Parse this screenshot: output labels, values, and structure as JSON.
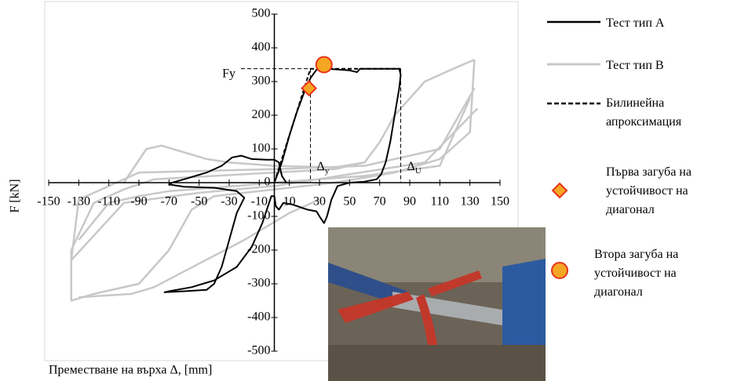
{
  "chart_data": {
    "type": "line",
    "xlabel": "Преместване на върха Δ, [mm]",
    "ylabel": "F [kN]",
    "xlim": [
      -150,
      150
    ],
    "ylim": [
      -500,
      500
    ],
    "xticks": [
      -150,
      -130,
      -110,
      -90,
      -70,
      -50,
      -30,
      -10,
      10,
      30,
      50,
      70,
      90,
      110,
      130,
      150
    ],
    "yticks": [
      -500,
      -400,
      -300,
      -200,
      -100,
      0,
      100,
      200,
      300,
      400,
      500
    ],
    "legend": "right",
    "series": [
      {
        "name": "Тест тип В",
        "color": "#c8c8c8",
        "style": "solid",
        "x": [
          133,
          120,
          100,
          80,
          70,
          60,
          40,
          0,
          -40,
          -80,
          -100,
          -120,
          -135,
          -135,
          -120,
          -90,
          -70,
          -55,
          -40,
          0,
          40,
          80,
          110,
          130,
          133,
          null,
          133,
          110,
          60,
          0,
          -90,
          -130,
          -135,
          -100,
          -50,
          0,
          100,
          135,
          null,
          -130,
          -110,
          -90,
          -70,
          -40,
          0,
          60,
          110,
          130,
          null,
          -100,
          -85,
          -75,
          -60,
          -45,
          -30,
          0,
          40,
          60,
          null,
          30,
          10,
          -20,
          -50,
          -80,
          -95,
          -130
        ],
        "values": [
          365,
          340,
          300,
          200,
          120,
          60,
          40,
          30,
          20,
          10,
          -20,
          -60,
          -200,
          -350,
          -330,
          -300,
          -200,
          -80,
          -40,
          -20,
          0,
          30,
          70,
          150,
          365,
          null,
          280,
          100,
          50,
          40,
          30,
          -50,
          -230,
          -60,
          -30,
          -10,
          60,
          220,
          null,
          -170,
          -60,
          -40,
          -25,
          -15,
          0,
          20,
          50,
          250,
          null,
          0,
          100,
          110,
          90,
          70,
          60,
          50,
          45,
          60,
          null,
          -50,
          -90,
          -170,
          -240,
          -310,
          -330,
          -340
        ]
      },
      {
        "name": "Тест тип А",
        "color": "#000000",
        "style": "solid",
        "x": [
          0,
          5,
          10,
          15,
          20,
          24,
          28,
          35,
          50,
          55,
          57,
          70,
          83,
          84,
          83,
          80,
          77,
          74,
          71,
          68,
          60,
          50,
          42,
          38,
          35,
          33,
          30,
          28,
          22,
          12,
          6,
          3,
          1,
          0,
          -2,
          -8,
          -15,
          -25,
          -40,
          -55,
          -70,
          -73,
          -60,
          -45,
          -40,
          -35,
          -30,
          -25,
          -20,
          -25,
          -40,
          -60,
          -70,
          -68,
          -60,
          -45,
          -35,
          -28,
          -22,
          -15,
          -5,
          0,
          3,
          5,
          8
        ],
        "values": [
          0,
          60,
          140,
          210,
          270,
          310,
          335,
          338,
          333,
          328,
          338,
          338,
          338,
          320,
          280,
          200,
          120,
          60,
          25,
          10,
          3,
          0,
          -10,
          -50,
          -100,
          -120,
          -100,
          -85,
          -80,
          -65,
          -60,
          -80,
          -70,
          -40,
          -40,
          -120,
          -190,
          -250,
          -290,
          -310,
          -322,
          -325,
          -322,
          -318,
          -300,
          -250,
          -170,
          -90,
          -45,
          -25,
          -15,
          -12,
          -5,
          0,
          10,
          30,
          50,
          75,
          80,
          70,
          68,
          68,
          60,
          20,
          0
        ]
      },
      {
        "name": "Билинейна апроксимация",
        "color": "#000000",
        "style": "dashed",
        "x": [
          0,
          24,
          84
        ],
        "values": [
          0,
          338,
          338
        ]
      },
      {
        "name": "Първа загуба на устойчивост на диагонал",
        "color": "#f5a623",
        "edge": "#e8331c",
        "marker": "diamond",
        "x": [
          23
        ],
        "values": [
          280
        ]
      },
      {
        "name": "Втора загуба на устойчивост на диагонал",
        "color": "#f5a623",
        "edge": "#e8331c",
        "marker": "circle",
        "x": [
          33
        ],
        "values": [
          350
        ]
      }
    ],
    "annotations": [
      {
        "text": "Fy",
        "y": 338
      },
      {
        "text": "Δy",
        "x": 24
      },
      {
        "text": "ΔU",
        "x": 84
      }
    ]
  }
}
